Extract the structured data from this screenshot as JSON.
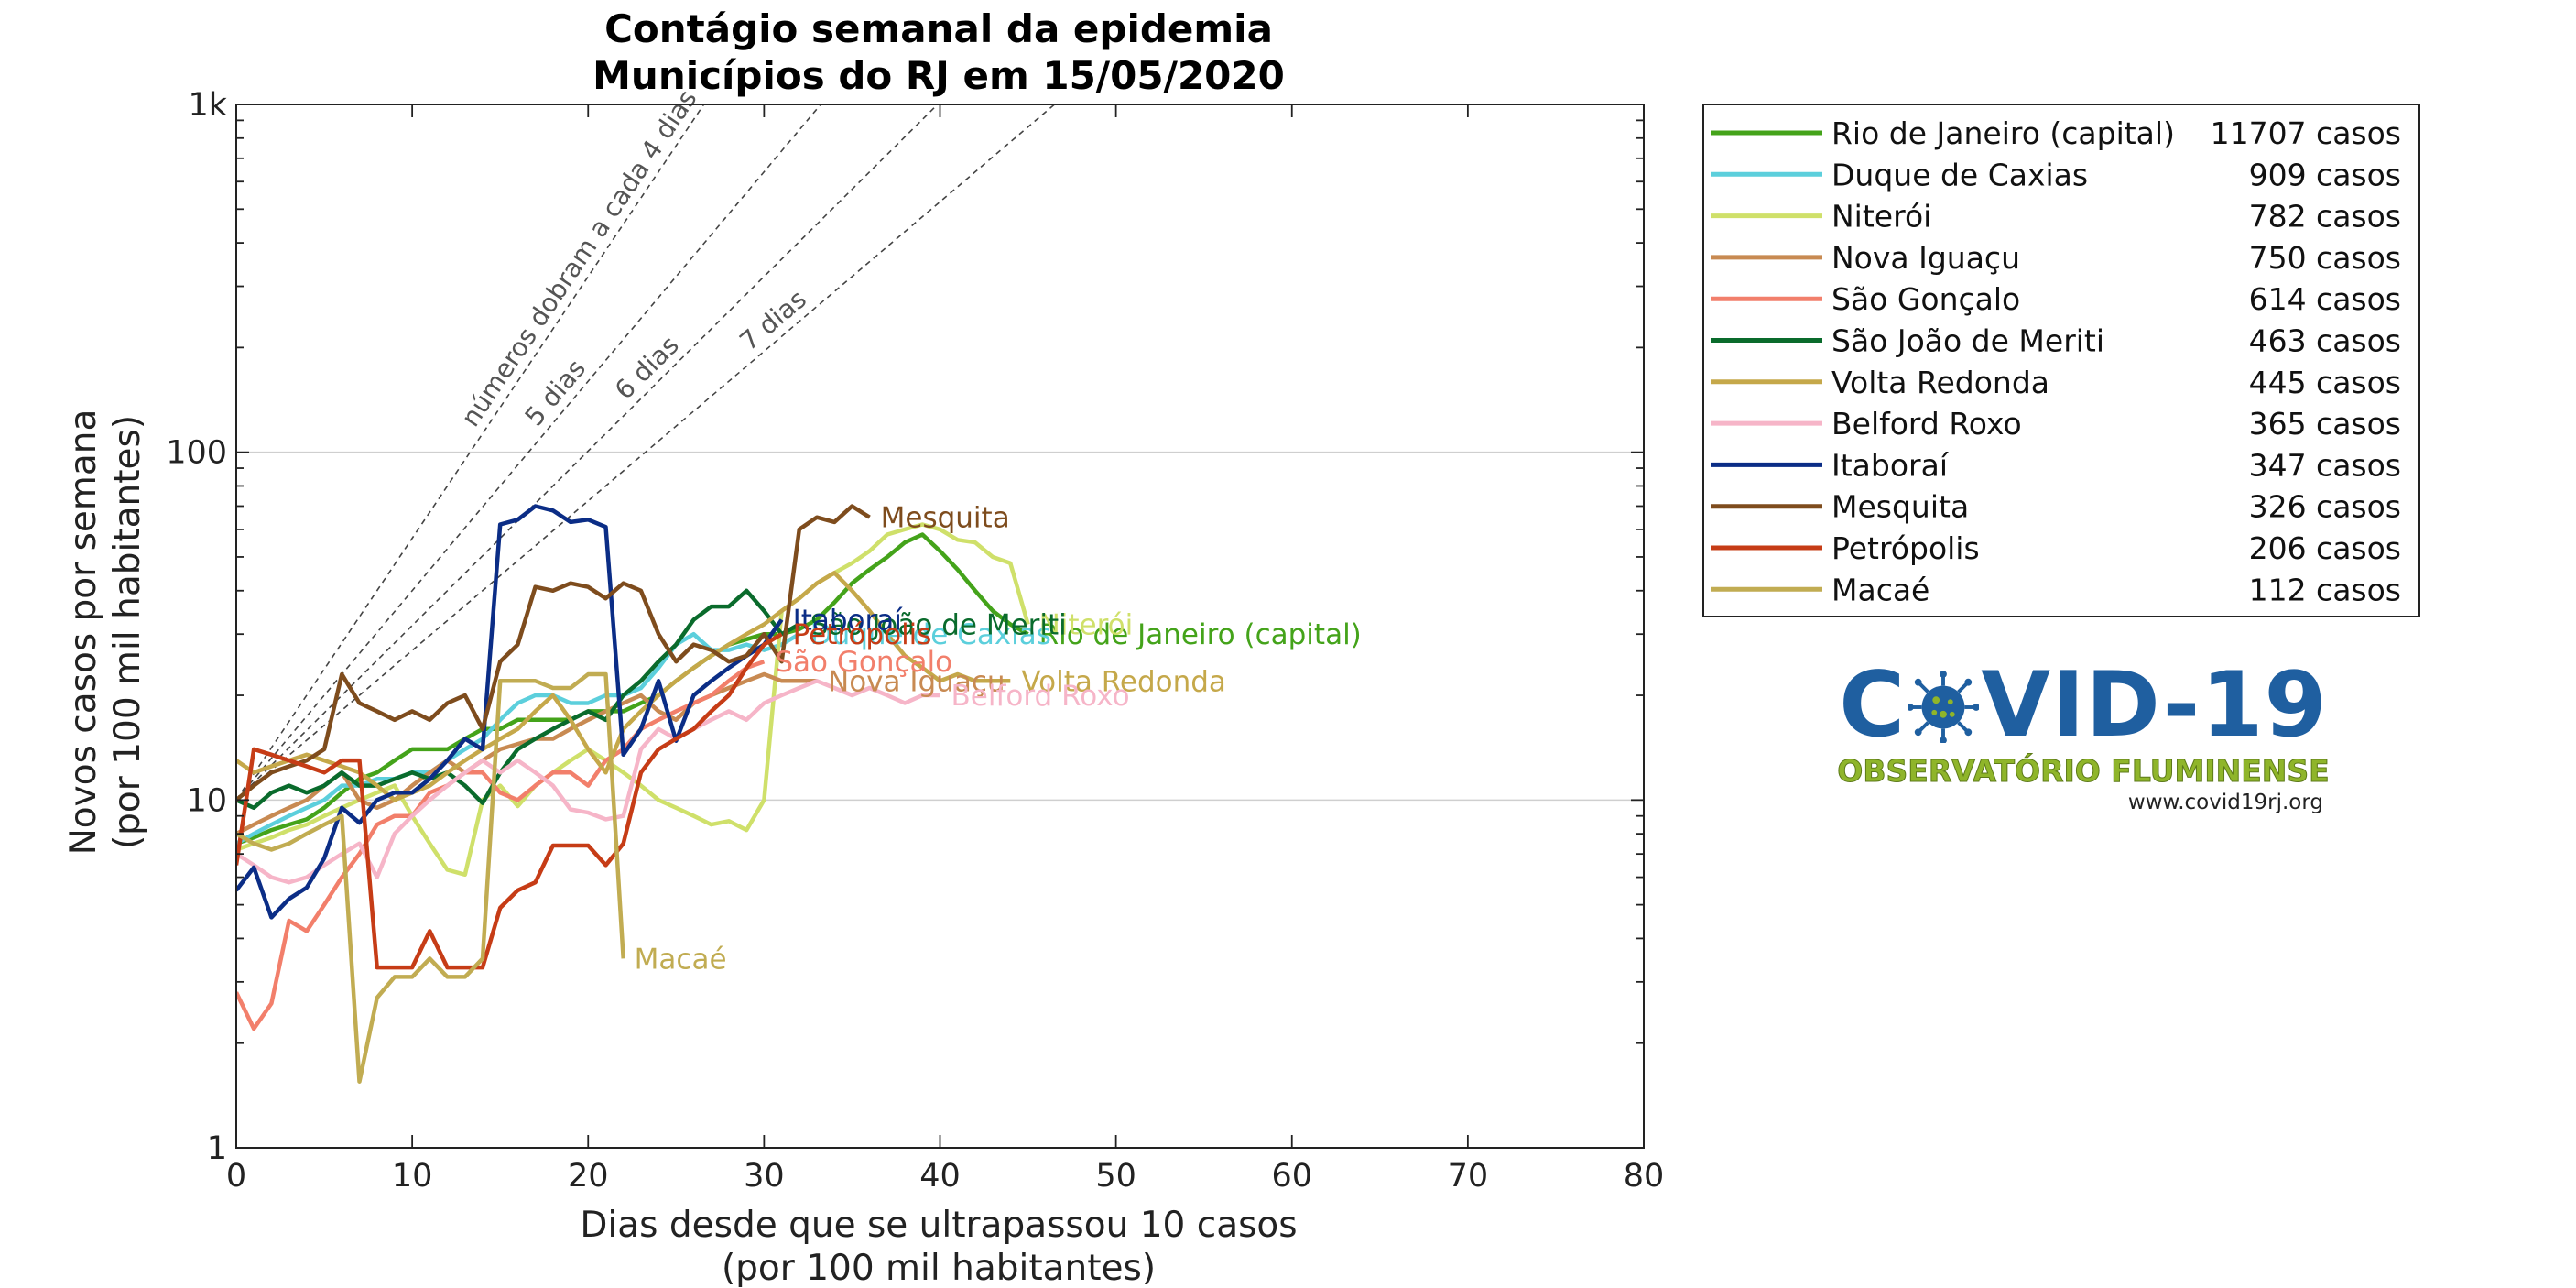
{
  "chart_data": {
    "type": "line",
    "title": "Contágio semanal da epidemia",
    "subtitle": "Municípios do RJ em 15/05/2020",
    "xlabel": "Dias desde que se ultrapassou 10 casos",
    "xlabel2": "(por 100 mil habitantes)",
    "ylabel": "Novos casos por semana",
    "ylabel2": "(por 100 mil habitantes)",
    "xlim": [
      0,
      80
    ],
    "ylim": [
      1,
      1000
    ],
    "yscale": "log",
    "xticks": [
      "0",
      "10",
      "20",
      "30",
      "40",
      "50",
      "60",
      "70",
      "80"
    ],
    "yticks": [
      "1",
      "10",
      "100",
      "1k"
    ],
    "grid": "horizontal major lines",
    "legend_position": "outside-right",
    "doubling_guides": [
      {
        "label": "números dobram a cada 4 dias",
        "days": 4
      },
      {
        "label": "5 dias",
        "days": 5
      },
      {
        "label": "6 dias",
        "days": 6
      },
      {
        "label": "7 dias",
        "days": 7
      }
    ],
    "series": [
      {
        "name": "Rio de Janeiro (capital)",
        "cases": "11707 casos",
        "color": "#44a31a",
        "label": "Rio de Janeiro (capital)",
        "x": [
          0,
          1,
          2,
          3,
          4,
          5,
          6,
          7,
          8,
          9,
          10,
          11,
          12,
          13,
          14,
          15,
          16,
          17,
          18,
          19,
          20,
          21,
          22,
          23,
          24,
          25,
          26,
          27,
          28,
          29,
          30,
          31,
          32,
          33,
          34,
          35,
          36,
          37,
          38,
          39,
          40,
          41,
          42,
          43,
          44,
          45
        ],
        "y": [
          7.5,
          7.8,
          8.2,
          8.5,
          8.8,
          9.5,
          10.5,
          11.5,
          12,
          13,
          14,
          14,
          14,
          15,
          16,
          16,
          17,
          17,
          17,
          17,
          18,
          18,
          18,
          19,
          20,
          22,
          24,
          26,
          28,
          29,
          30,
          30,
          31,
          33,
          37,
          42,
          46,
          50,
          55,
          58,
          52,
          46,
          40,
          35,
          32,
          30
        ]
      },
      {
        "name": "Duque de Caxias",
        "cases": "909 casos",
        "color": "#5ccfdc",
        "label": "Duque de Caxias",
        "x": [
          0,
          1,
          2,
          3,
          4,
          5,
          6,
          7,
          8,
          9,
          10,
          11,
          12,
          13,
          14,
          15,
          16,
          17,
          18,
          19,
          20,
          21,
          22,
          23,
          24,
          25,
          26,
          27,
          28,
          29,
          30,
          31,
          32
        ],
        "y": [
          7.5,
          8,
          8.5,
          9,
          9.5,
          10,
          11,
          11,
          11.5,
          11.5,
          12,
          12,
          13,
          14,
          15,
          17,
          19,
          20,
          20,
          19,
          19,
          20,
          20,
          21,
          24,
          28,
          30,
          27,
          27,
          28,
          27,
          28,
          30
        ]
      },
      {
        "name": "Niterói",
        "cases": "782 casos",
        "color": "#cfe06a",
        "label": "Niterói",
        "x": [
          0,
          1,
          2,
          3,
          4,
          5,
          6,
          7,
          8,
          9,
          10,
          11,
          12,
          13,
          14,
          15,
          16,
          17,
          18,
          19,
          20,
          21,
          22,
          23,
          24,
          25,
          26,
          27,
          28,
          29,
          30,
          31,
          32,
          33,
          34,
          35,
          36,
          37,
          38,
          39,
          40,
          41,
          42,
          43,
          44,
          45
        ],
        "y": [
          7.2,
          7.5,
          7.8,
          8.2,
          8.5,
          9,
          9.5,
          10,
          10.5,
          11,
          9,
          7.5,
          6.3,
          6.1,
          10,
          11,
          9.6,
          11,
          12,
          13,
          14,
          13,
          12,
          11,
          10,
          9.5,
          9,
          8.5,
          8.7,
          8.2,
          10,
          35,
          38,
          42,
          45,
          48,
          52,
          58,
          60,
          62,
          60,
          56,
          55,
          50,
          48,
          32
        ]
      },
      {
        "name": "Nova Iguaçu",
        "cases": "750 casos",
        "color": "#c88a52",
        "label": "Nova Iguaçu",
        "x": [
          0,
          1,
          2,
          3,
          4,
          5,
          6,
          7,
          8,
          9,
          10,
          11,
          12,
          13,
          14,
          15,
          16,
          17,
          18,
          19,
          20,
          21,
          22,
          23,
          24,
          25,
          26,
          27,
          28,
          29,
          30,
          31,
          32,
          33
        ],
        "y": [
          8,
          8.5,
          9,
          9.5,
          10,
          11,
          12,
          10,
          9.5,
          10,
          11,
          12,
          13,
          12,
          13,
          14,
          14.5,
          15,
          15,
          16,
          17,
          18,
          19,
          20,
          18,
          17,
          19,
          20,
          21,
          22,
          23,
          22,
          22,
          22
        ]
      },
      {
        "name": "São Gonçalo",
        "cases": "614 casos",
        "color": "#f27f6b",
        "label": "São Gonçalo",
        "x": [
          0,
          1,
          2,
          3,
          4,
          5,
          6,
          7,
          8,
          9,
          10,
          11,
          12,
          13,
          14,
          15,
          16,
          17,
          18,
          19,
          20,
          21,
          22,
          23,
          24,
          25,
          26,
          27,
          28,
          29,
          30
        ],
        "y": [
          2.8,
          2.2,
          2.6,
          4.5,
          4.2,
          5,
          6,
          7,
          8.5,
          9,
          9,
          10.5,
          11,
          12,
          12,
          10.5,
          10,
          11,
          12,
          12,
          11,
          13,
          14,
          16,
          17,
          18,
          19,
          20,
          22,
          24,
          25
        ]
      },
      {
        "name": "São João de Meriti",
        "cases": "463 casos",
        "color": "#0a6b2c",
        "label": "São João de Meriti",
        "x": [
          0,
          1,
          2,
          3,
          4,
          5,
          6,
          7,
          8,
          9,
          10,
          11,
          12,
          13,
          14,
          15,
          16,
          17,
          18,
          19,
          20,
          21,
          22,
          23,
          24,
          25,
          26,
          27,
          28,
          29,
          30,
          31,
          32
        ],
        "y": [
          10,
          9.5,
          10.5,
          11,
          10.5,
          11,
          12,
          11,
          11,
          11.5,
          12,
          11.5,
          12,
          11,
          9.8,
          12,
          14,
          15,
          16,
          17,
          18,
          17,
          20,
          22,
          25,
          28,
          33,
          36,
          36,
          40,
          35,
          30,
          32
        ]
      },
      {
        "name": "Volta Redonda",
        "cases": "445 casos",
        "color": "#c5a84a",
        "label": "Volta Redonda",
        "x": [
          0,
          1,
          2,
          3,
          4,
          5,
          6,
          7,
          8,
          9,
          10,
          11,
          12,
          13,
          14,
          15,
          16,
          17,
          18,
          19,
          20,
          21,
          22,
          23,
          24,
          25,
          26,
          27,
          28,
          29,
          30,
          31,
          32,
          33,
          34,
          35,
          36,
          37,
          38,
          39,
          40,
          41,
          42,
          43,
          44
        ],
        "y": [
          13,
          12,
          12.5,
          13,
          13.5,
          13,
          12.5,
          12,
          11,
          10,
          10.5,
          11,
          12,
          13,
          14,
          15,
          16,
          18,
          20,
          17,
          14,
          12,
          16,
          18,
          20,
          22,
          24,
          26,
          28,
          30,
          32,
          35,
          38,
          42,
          45,
          40,
          35,
          30,
          26,
          24,
          22,
          23,
          22,
          22,
          22
        ]
      },
      {
        "name": "Belford Roxo",
        "cases": "365 casos",
        "color": "#f6b5c8",
        "label": "Belford Roxo",
        "x": [
          0,
          1,
          2,
          3,
          4,
          5,
          6,
          7,
          8,
          9,
          10,
          11,
          12,
          13,
          14,
          15,
          16,
          17,
          18,
          19,
          20,
          21,
          22,
          23,
          24,
          25,
          26,
          27,
          28,
          29,
          30,
          31,
          32,
          33,
          34,
          35,
          36,
          37,
          38,
          39,
          40
        ],
        "y": [
          7,
          6.5,
          6,
          5.8,
          6,
          6.5,
          7,
          7.5,
          6,
          8,
          9,
          10,
          11,
          12,
          13,
          12,
          13,
          12,
          11,
          9.4,
          9.2,
          8.8,
          9,
          14,
          16,
          15,
          16,
          17,
          18,
          17,
          19,
          20,
          21,
          22,
          21,
          20,
          21,
          20,
          19,
          20,
          20
        ]
      },
      {
        "name": "Itaboraí",
        "cases": "347 casos",
        "color": "#0b2d86",
        "label": "Itaboraí",
        "x": [
          0,
          1,
          2,
          3,
          4,
          5,
          6,
          7,
          8,
          9,
          10,
          11,
          12,
          13,
          14,
          15,
          16,
          17,
          18,
          19,
          20,
          21,
          22,
          23,
          24,
          25,
          26,
          27,
          28,
          29,
          30,
          31
        ],
        "y": [
          5.5,
          6.4,
          4.6,
          5.2,
          5.6,
          6.8,
          9.5,
          8.6,
          10,
          10.5,
          10.5,
          11.5,
          13,
          15,
          14,
          62,
          64,
          70,
          68,
          63,
          64,
          61,
          13.5,
          16,
          22,
          14.8,
          20,
          22,
          24,
          26,
          28,
          33
        ]
      },
      {
        "name": "Mesquita",
        "cases": "326 casos",
        "color": "#7e4c1d",
        "label": "Mesquita",
        "x": [
          0,
          1,
          2,
          3,
          4,
          5,
          6,
          7,
          8,
          9,
          10,
          11,
          12,
          13,
          14,
          15,
          16,
          17,
          18,
          19,
          20,
          21,
          22,
          23,
          24,
          25,
          26,
          27,
          28,
          29,
          30,
          31,
          32,
          33,
          34,
          35,
          36
        ],
        "y": [
          10,
          11,
          12,
          12.5,
          13,
          14,
          23,
          19,
          18,
          17,
          18,
          17,
          19,
          20,
          16,
          25,
          28,
          41,
          40,
          42,
          41,
          38,
          42,
          40,
          30,
          25,
          28,
          27,
          25,
          26,
          30,
          25,
          60,
          65,
          63,
          70,
          65
        ]
      },
      {
        "name": "Petrópolis",
        "cases": "206 casos",
        "color": "#c63c16",
        "label": "Petrópolis",
        "x": [
          0,
          1,
          2,
          3,
          4,
          5,
          6,
          7,
          8,
          9,
          10,
          11,
          12,
          13,
          14,
          15,
          16,
          17,
          18,
          19,
          20,
          21,
          22,
          23,
          24,
          25,
          26,
          27,
          28,
          29,
          30,
          31
        ],
        "y": [
          6.5,
          14,
          13.5,
          13,
          12.5,
          12,
          13,
          13,
          3.3,
          3.3,
          3.3,
          4.2,
          3.3,
          3.3,
          3.3,
          4.9,
          5.5,
          5.8,
          7.4,
          7.4,
          7.4,
          6.5,
          7.5,
          12,
          14,
          15,
          16,
          18,
          20,
          24,
          28,
          30
        ]
      },
      {
        "name": "Macaé",
        "cases": "112 casos",
        "color": "#c1ac52",
        "label": "Macaé",
        "x": [
          0,
          1,
          2,
          3,
          4,
          5,
          6,
          7,
          8,
          9,
          10,
          11,
          12,
          13,
          14,
          15,
          16,
          17,
          18,
          19,
          20,
          21,
          22
        ],
        "y": [
          8,
          7.5,
          7.2,
          7.5,
          8,
          8.5,
          9,
          1.55,
          2.7,
          3.1,
          3.1,
          3.5,
          3.1,
          3.1,
          3.5,
          22,
          22,
          22,
          21,
          21,
          23,
          23,
          3.5
        ]
      }
    ]
  },
  "logo": {
    "title_left": "C",
    "title_right": "VID-19",
    "subtitle": "OBSERVATÓRIO FLUMINENSE",
    "url": "www.covid19rj.org"
  }
}
